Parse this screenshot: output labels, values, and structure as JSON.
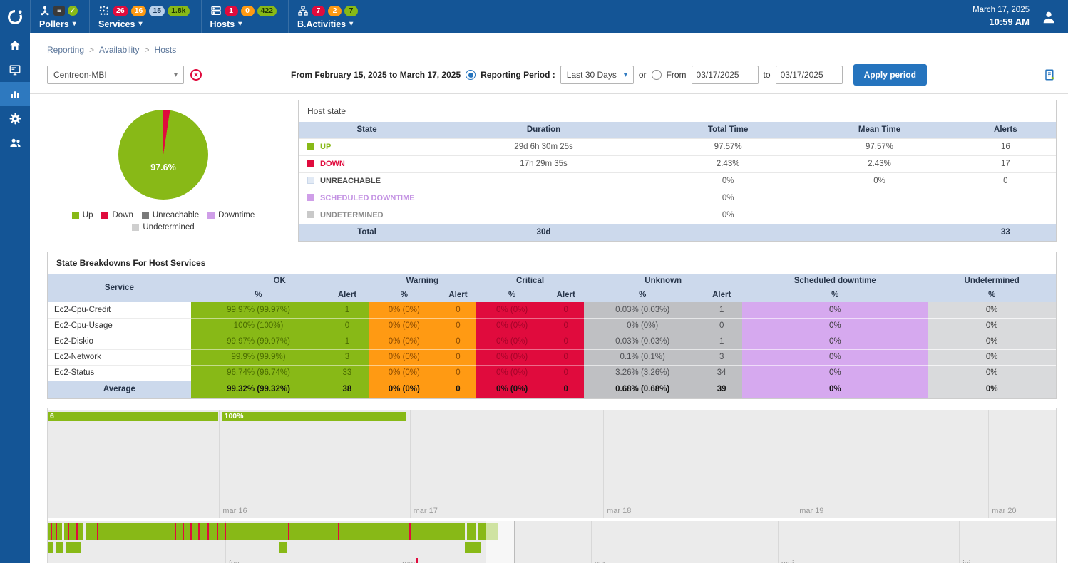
{
  "colors": {
    "up": "#88b917",
    "down": "#e00b3d",
    "warning": "#ff9a13",
    "downtime": "#cf9ee8",
    "undetermined": "#cfcfcf",
    "topbar": "#145596",
    "accent": "#2574be"
  },
  "topbar": {
    "date": "March 17, 2025",
    "time": "10:59 AM",
    "menus": {
      "pollers": {
        "label": "Pollers"
      },
      "services": {
        "label": "Services",
        "critical": "26",
        "warning": "16",
        "pending": "15",
        "ok": "1.8k"
      },
      "hosts": {
        "label": "Hosts",
        "down": "1",
        "unreachable": "0",
        "up": "422"
      },
      "bactivities": {
        "label": "B.Activities",
        "critical": "7",
        "warning": "2",
        "ok": "7"
      }
    }
  },
  "breadcrumb": {
    "items": [
      "Reporting",
      "Availability",
      "Hosts"
    ]
  },
  "filters": {
    "host_select": "Centreon-MBI",
    "range_text": "From February 15, 2025 to March 17, 2025",
    "period_label": "Reporting Period :",
    "period_select": "Last 30 Days",
    "or_label": "or",
    "from_label": "From",
    "from_value": "03/17/2025",
    "to_label": "to",
    "to_value": "03/17/2025",
    "apply_button": "Apply period"
  },
  "pie": {
    "value_label": "97.6%",
    "up_pct": 97.6,
    "down_pct": 2.4,
    "legend": [
      {
        "label": "Up"
      },
      {
        "label": "Down"
      },
      {
        "label": "Unreachable"
      },
      {
        "label": "Downtime"
      },
      {
        "label": "Undetermined"
      }
    ]
  },
  "host_state": {
    "title": "Host state",
    "headers": [
      "State",
      "Duration",
      "Total Time",
      "Mean Time",
      "Alerts"
    ],
    "rows": [
      {
        "state": "UP",
        "duration": "29d 6h 30m 25s",
        "total": "97.57%",
        "mean": "97.57%",
        "alerts": "16"
      },
      {
        "state": "DOWN",
        "duration": "17h 29m 35s",
        "total": "2.43%",
        "mean": "2.43%",
        "alerts": "17"
      },
      {
        "state": "UNREACHABLE",
        "duration": "",
        "total": "0%",
        "mean": "0%",
        "alerts": "0"
      },
      {
        "state": "SCHEDULED DOWNTIME",
        "duration": "",
        "total": "0%",
        "mean": "",
        "alerts": ""
      },
      {
        "state": "UNDETERMINED",
        "duration": "",
        "total": "0%",
        "mean": "",
        "alerts": ""
      }
    ],
    "total": {
      "label": "Total",
      "duration": "30d",
      "alerts": "33"
    }
  },
  "breakdown": {
    "title": "State Breakdowns For Host Services",
    "col_headers": {
      "service": "Service",
      "ok": "OK",
      "warning": "Warning",
      "critical": "Critical",
      "unknown": "Unknown",
      "scheduled": "Scheduled downtime",
      "undetermined": "Undetermined",
      "pct": "%",
      "alert": "Alert"
    },
    "rows": [
      {
        "service": "Ec2-Cpu-Credit",
        "ok_pct": "99.97% (99.97%)",
        "ok_alert": "1",
        "warn_pct": "0% (0%)",
        "warn_alert": "0",
        "crit_pct": "0% (0%)",
        "crit_alert": "0",
        "unk_pct": "0.03% (0.03%)",
        "unk_alert": "1",
        "sched_pct": "0%",
        "undet_pct": "0%"
      },
      {
        "service": "Ec2-Cpu-Usage",
        "ok_pct": "100% (100%)",
        "ok_alert": "0",
        "warn_pct": "0% (0%)",
        "warn_alert": "0",
        "crit_pct": "0% (0%)",
        "crit_alert": "0",
        "unk_pct": "0% (0%)",
        "unk_alert": "0",
        "sched_pct": "0%",
        "undet_pct": "0%"
      },
      {
        "service": "Ec2-Diskio",
        "ok_pct": "99.97% (99.97%)",
        "ok_alert": "1",
        "warn_pct": "0% (0%)",
        "warn_alert": "0",
        "crit_pct": "0% (0%)",
        "crit_alert": "0",
        "unk_pct": "0.03% (0.03%)",
        "unk_alert": "1",
        "sched_pct": "0%",
        "undet_pct": "0%"
      },
      {
        "service": "Ec2-Network",
        "ok_pct": "99.9% (99.9%)",
        "ok_alert": "3",
        "warn_pct": "0% (0%)",
        "warn_alert": "0",
        "crit_pct": "0% (0%)",
        "crit_alert": "0",
        "unk_pct": "0.1% (0.1%)",
        "unk_alert": "3",
        "sched_pct": "0%",
        "undet_pct": "0%"
      },
      {
        "service": "Ec2-Status",
        "ok_pct": "96.74% (96.74%)",
        "ok_alert": "33",
        "warn_pct": "0% (0%)",
        "warn_alert": "0",
        "crit_pct": "0% (0%)",
        "crit_alert": "0",
        "unk_pct": "3.26% (3.26%)",
        "unk_alert": "34",
        "sched_pct": "0%",
        "undet_pct": "0%"
      }
    ],
    "average": {
      "service": "Average",
      "ok_pct": "99.32% (99.32%)",
      "ok_alert": "38",
      "warn_pct": "0% (0%)",
      "warn_alert": "0",
      "crit_pct": "0% (0%)",
      "crit_alert": "0",
      "unk_pct": "0.68% (0.68%)",
      "unk_alert": "39",
      "sched_pct": "0%",
      "undet_pct": "0%"
    }
  },
  "timeline": {
    "bars": [
      {
        "x": 0,
        "w": 16.9,
        "label": "6"
      },
      {
        "x": 17.3,
        "w": 18.2,
        "label": "100%"
      }
    ],
    "day_ticks": [
      {
        "label": "mar 16",
        "x": 17.0
      },
      {
        "label": "mar 17",
        "x": 35.9
      },
      {
        "label": "mar 18",
        "x": 55.1
      },
      {
        "label": "mar 19",
        "x": 74.2
      },
      {
        "label": "mar 20",
        "x": 93.3
      }
    ],
    "month_ticks": [
      {
        "label": "fev",
        "x": 17.6
      },
      {
        "label": "mar",
        "x": 34.8
      },
      {
        "label": "avr",
        "x": 53.9
      },
      {
        "label": "mai",
        "x": 72.4
      },
      {
        "label": "jui",
        "x": 90.4
      }
    ],
    "detail_row1": [
      [
        0,
        0.3,
        "g"
      ],
      [
        0.3,
        0.15,
        "r"
      ],
      [
        0.45,
        0.35,
        "g"
      ],
      [
        0.8,
        0.15,
        "r"
      ],
      [
        0.95,
        0.5,
        "g"
      ],
      [
        1.6,
        0.35,
        "g"
      ],
      [
        1.95,
        0.15,
        "r"
      ],
      [
        2.1,
        0.75,
        "g"
      ],
      [
        2.85,
        0.15,
        "r"
      ],
      [
        3.0,
        0.55,
        "g"
      ],
      [
        3.75,
        1.1,
        "g"
      ],
      [
        4.85,
        0.15,
        "r"
      ],
      [
        5.0,
        7.6,
        "g"
      ],
      [
        12.6,
        0.15,
        "r"
      ],
      [
        12.75,
        0.6,
        "g"
      ],
      [
        13.35,
        0.15,
        "r"
      ],
      [
        13.5,
        0.65,
        "g"
      ],
      [
        14.15,
        0.15,
        "r"
      ],
      [
        14.3,
        0.6,
        "g"
      ],
      [
        14.9,
        0.15,
        "r"
      ],
      [
        15.05,
        0.75,
        "g"
      ],
      [
        15.8,
        0.15,
        "r"
      ],
      [
        15.95,
        0.8,
        "g"
      ],
      [
        16.75,
        0.15,
        "r"
      ],
      [
        16.9,
        0.65,
        "g"
      ],
      [
        17.55,
        0.15,
        "r"
      ],
      [
        17.7,
        6.1,
        "g"
      ],
      [
        23.8,
        0.2,
        "r"
      ],
      [
        24.0,
        4.75,
        "g"
      ],
      [
        28.75,
        0.2,
        "r"
      ],
      [
        28.95,
        6.85,
        "g"
      ],
      [
        35.8,
        0.25,
        "r"
      ],
      [
        36.05,
        5.35,
        "g"
      ],
      [
        41.6,
        0.85,
        "g"
      ],
      [
        42.75,
        1.85,
        "g"
      ]
    ],
    "detail_row2": [
      [
        0,
        0.5
      ],
      [
        0.85,
        0.7
      ],
      [
        1.75,
        1.55
      ],
      [
        22.95,
        0.8
      ],
      [
        41.35,
        1.55
      ]
    ],
    "cursor_x": 36.5,
    "selection": {
      "x": 43.4,
      "w": 2.9
    }
  }
}
